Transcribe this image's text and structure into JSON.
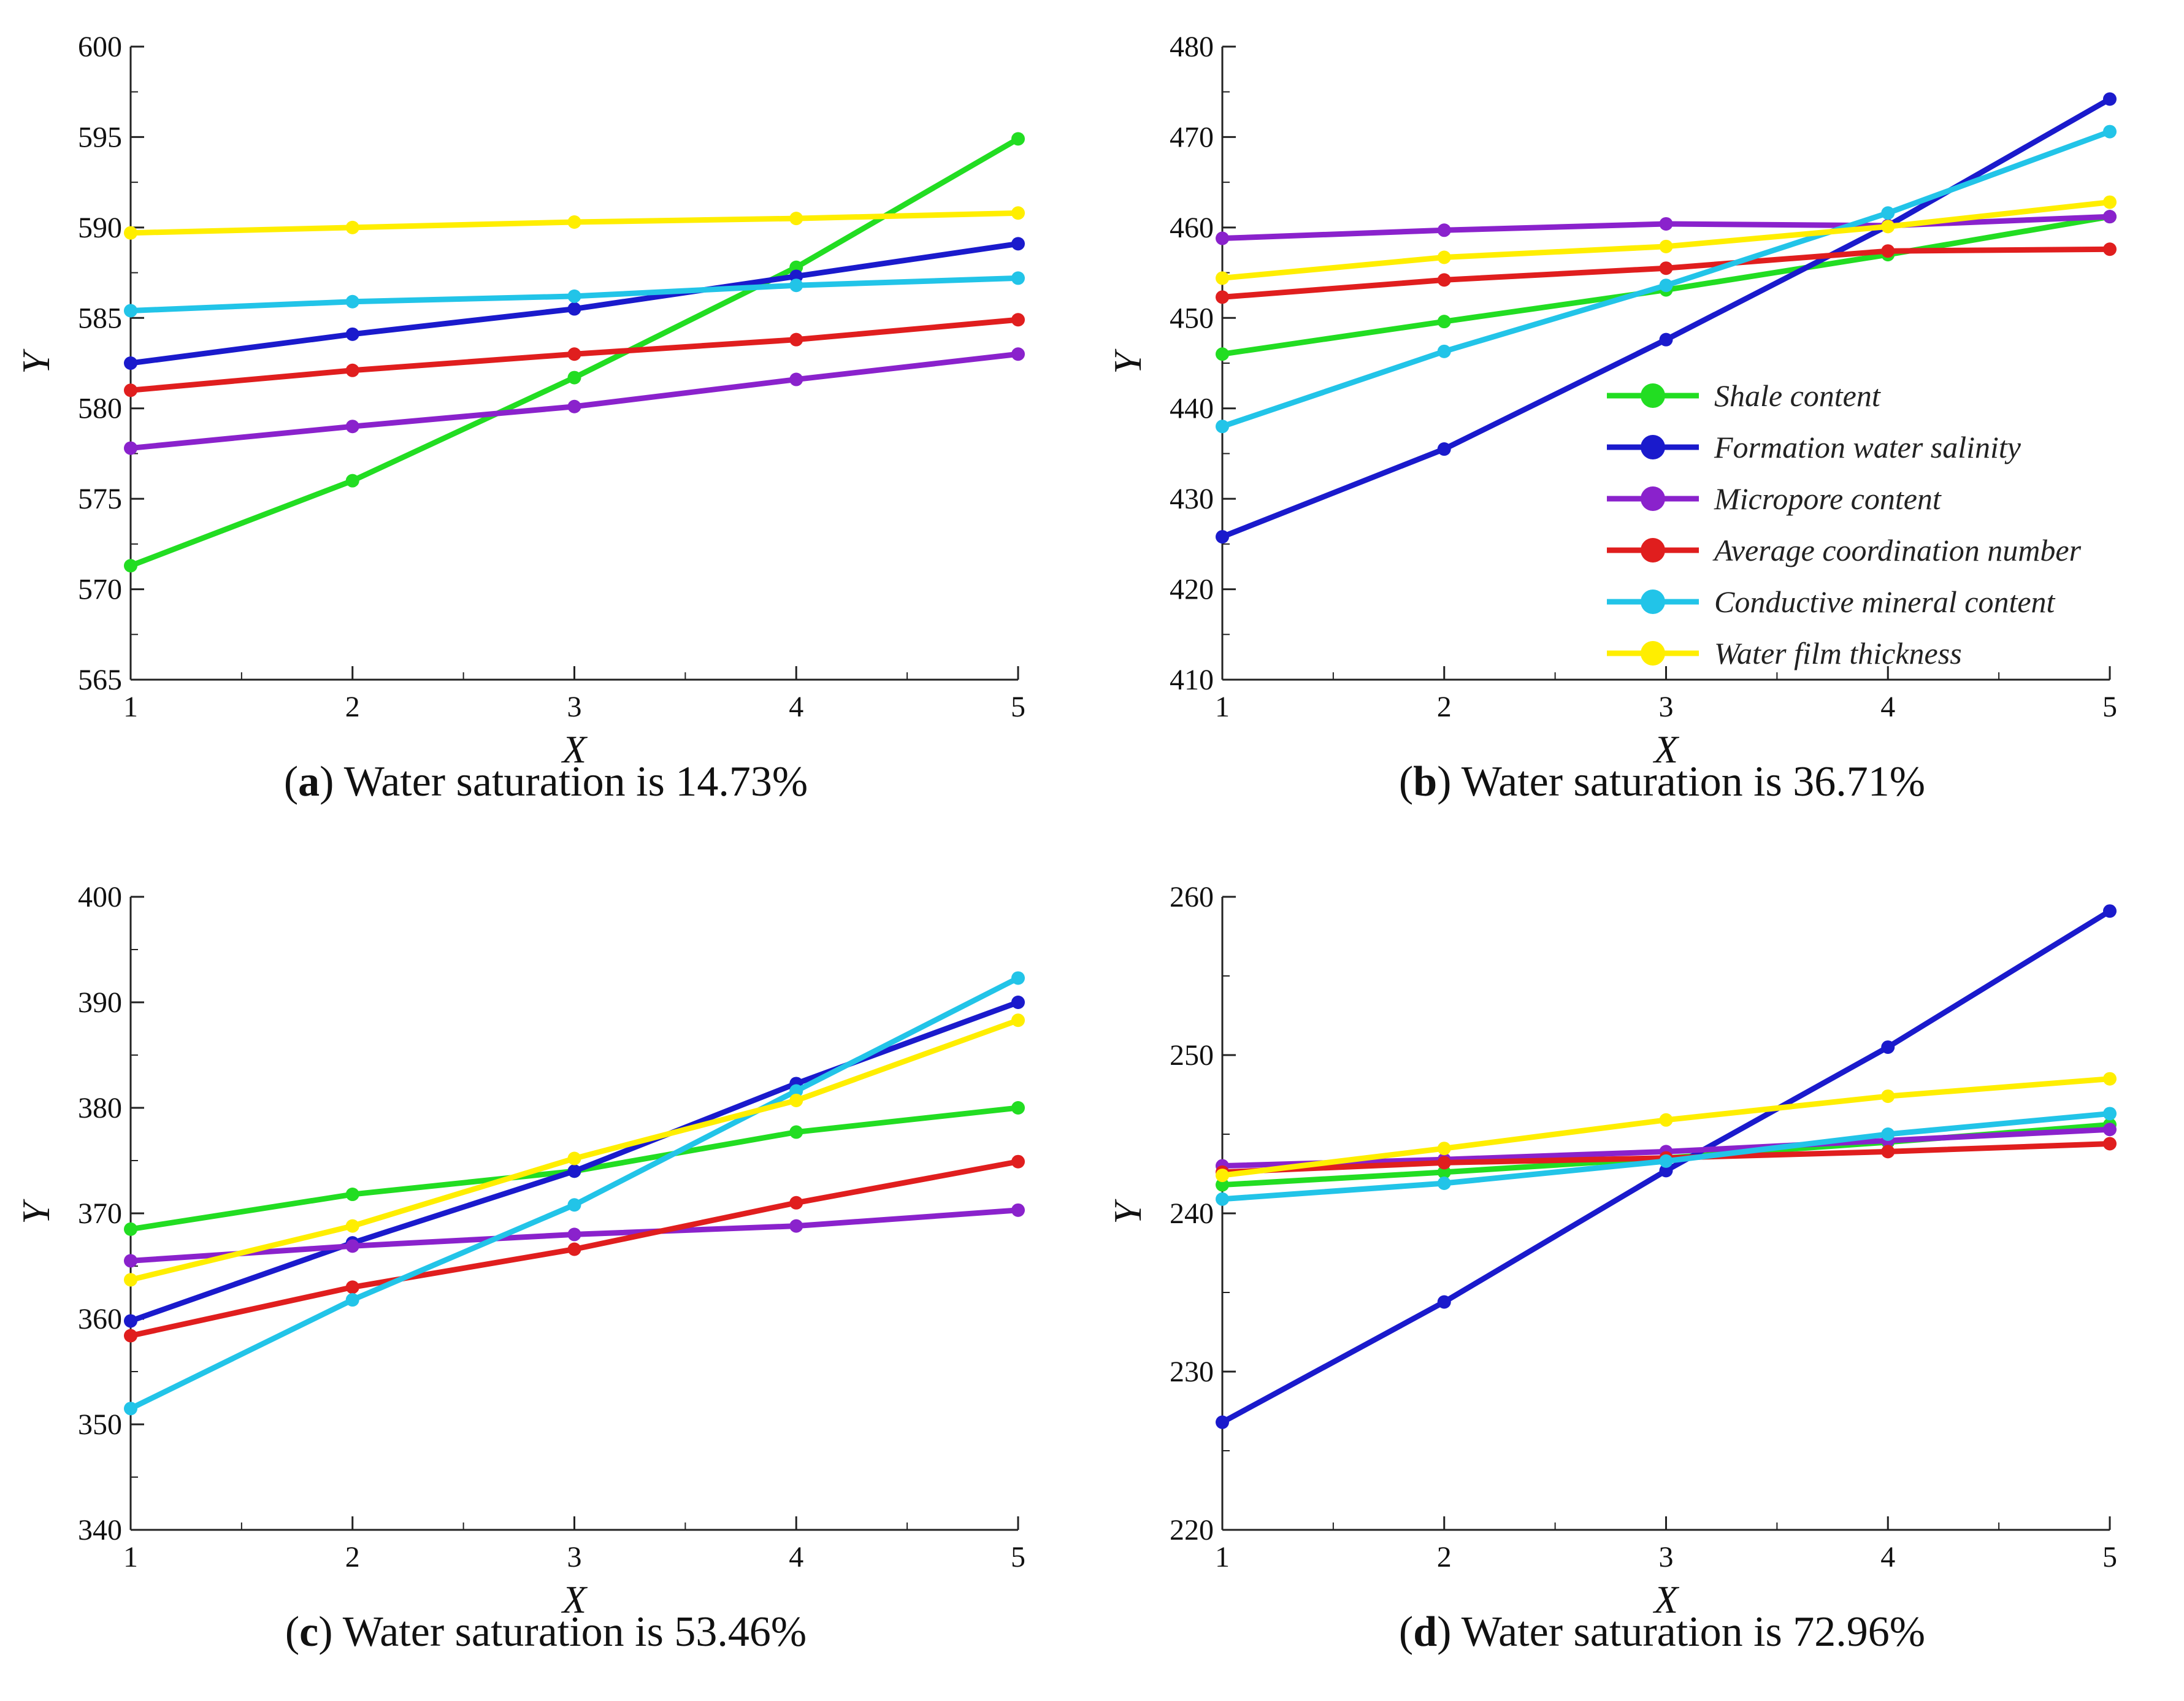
{
  "chart_data": [
    {
      "type": "line",
      "panel_letter": "a",
      "caption_text": "Water saturation is 14.73%",
      "xlabel": "X",
      "ylabel": "Y",
      "x": [
        1,
        2,
        3,
        4,
        5
      ],
      "ylim": [
        565,
        600
      ],
      "yticks": [
        565,
        570,
        575,
        580,
        585,
        590,
        595,
        600
      ],
      "series": [
        {
          "name": "Shale content",
          "color": "#22dd22",
          "values": [
            571.3,
            576.0,
            581.7,
            587.8,
            594.9
          ]
        },
        {
          "name": "Formation water salinity",
          "color": "#1a1acc",
          "values": [
            582.5,
            584.1,
            585.5,
            587.3,
            589.1
          ]
        },
        {
          "name": "Micropore content",
          "color": "#8a22cc",
          "values": [
            577.8,
            579.0,
            580.1,
            581.6,
            583.0
          ]
        },
        {
          "name": "Average coordination number",
          "color": "#e01e1e",
          "values": [
            581.0,
            582.1,
            583.0,
            583.8,
            584.9
          ]
        },
        {
          "name": "Conductive mineral content",
          "color": "#22c4e8",
          "values": [
            585.4,
            585.9,
            586.2,
            586.8,
            587.2
          ]
        },
        {
          "name": "Water film thickness",
          "color": "#ffee00",
          "values": [
            589.7,
            590.0,
            590.3,
            590.5,
            590.8
          ]
        }
      ]
    },
    {
      "type": "line",
      "panel_letter": "b",
      "caption_text": "Water saturation is 36.71%",
      "xlabel": "X",
      "ylabel": "Y",
      "x": [
        1,
        2,
        3,
        4,
        5
      ],
      "ylim": [
        410,
        480
      ],
      "yticks": [
        410,
        420,
        430,
        440,
        450,
        460,
        470,
        480
      ],
      "legend_position": "right-center",
      "series": [
        {
          "name": "Shale content",
          "color": "#22dd22",
          "values": [
            446.0,
            449.6,
            453.1,
            457.0,
            461.2
          ]
        },
        {
          "name": "Formation water salinity",
          "color": "#1a1acc",
          "values": [
            425.8,
            435.5,
            447.6,
            460.2,
            474.2
          ]
        },
        {
          "name": "Micropore content",
          "color": "#8a22cc",
          "values": [
            458.8,
            459.7,
            460.4,
            460.2,
            461.2
          ]
        },
        {
          "name": "Average coordination number",
          "color": "#e01e1e",
          "values": [
            452.3,
            454.2,
            455.5,
            457.4,
            457.6
          ]
        },
        {
          "name": "Conductive mineral content",
          "color": "#22c4e8",
          "values": [
            438.0,
            446.3,
            453.6,
            461.6,
            470.6
          ]
        },
        {
          "name": "Water film thickness",
          "color": "#ffee00",
          "values": [
            454.4,
            456.7,
            457.9,
            460.1,
            462.8
          ]
        }
      ]
    },
    {
      "type": "line",
      "panel_letter": "c",
      "caption_text": "Water saturation is 53.46%",
      "xlabel": "X",
      "ylabel": "Y",
      "x": [
        1,
        2,
        3,
        4,
        5
      ],
      "ylim": [
        340,
        400
      ],
      "yticks": [
        340,
        350,
        360,
        370,
        380,
        390,
        400
      ],
      "series": [
        {
          "name": "Shale content",
          "color": "#22dd22",
          "values": [
            368.5,
            371.8,
            374.0,
            377.7,
            380.0
          ]
        },
        {
          "name": "Formation water salinity",
          "color": "#1a1acc",
          "values": [
            359.8,
            367.2,
            374.0,
            382.3,
            390.0
          ]
        },
        {
          "name": "Micropore content",
          "color": "#8a22cc",
          "values": [
            365.5,
            366.9,
            368.0,
            368.8,
            370.3
          ]
        },
        {
          "name": "Average coordination number",
          "color": "#e01e1e",
          "values": [
            358.4,
            363.0,
            366.6,
            371.0,
            374.9
          ]
        },
        {
          "name": "Conductive mineral content",
          "color": "#22c4e8",
          "values": [
            351.5,
            361.8,
            370.8,
            381.6,
            392.3
          ]
        },
        {
          "name": "Water film thickness",
          "color": "#ffee00",
          "values": [
            363.7,
            368.8,
            375.2,
            380.7,
            388.3
          ]
        }
      ]
    },
    {
      "type": "line",
      "panel_letter": "d",
      "caption_text": "Water saturation is 72.96%",
      "xlabel": "X",
      "ylabel": "Y",
      "x": [
        1,
        2,
        3,
        4,
        5
      ],
      "ylim": [
        220,
        260
      ],
      "yticks": [
        220,
        230,
        240,
        250,
        260
      ],
      "series": [
        {
          "name": "Shale content",
          "color": "#22dd22",
          "values": [
            241.8,
            242.6,
            243.5,
            244.5,
            245.6
          ]
        },
        {
          "name": "Formation water salinity",
          "color": "#1a1acc",
          "values": [
            226.8,
            234.4,
            242.7,
            250.5,
            259.1
          ]
        },
        {
          "name": "Micropore content",
          "color": "#8a22cc",
          "values": [
            243.0,
            243.4,
            243.9,
            244.6,
            245.3
          ]
        },
        {
          "name": "Average coordination number",
          "color": "#e01e1e",
          "values": [
            242.6,
            243.2,
            243.5,
            243.9,
            244.4
          ]
        },
        {
          "name": "Conductive mineral content",
          "color": "#22c4e8",
          "values": [
            240.9,
            241.9,
            243.3,
            245.0,
            246.3
          ]
        },
        {
          "name": "Water film thickness",
          "color": "#ffee00",
          "values": [
            242.4,
            244.1,
            245.9,
            247.4,
            248.5
          ]
        }
      ]
    }
  ]
}
